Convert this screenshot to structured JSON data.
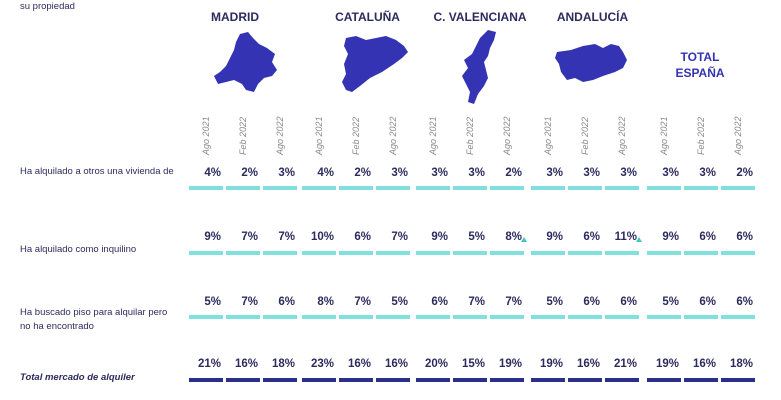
{
  "colors": {
    "map": "#3333b3",
    "bar_light": "#7fe0dd",
    "bar_total": "#2b2f8c",
    "text": "#2c2b5e",
    "arrow": "#3fc7c0"
  },
  "regions": [
    {
      "name": "MADRID",
      "icon": "madrid-map-icon"
    },
    {
      "name": "CATALUÑA",
      "icon": "cataluna-map-icon"
    },
    {
      "name": "C. VALENCIANA",
      "icon": "valencia-map-icon"
    },
    {
      "name": "ANDALUCÍA",
      "icon": "andalucia-map-icon"
    }
  ],
  "total_label": {
    "line1": "TOTAL",
    "line2": "ESPAÑA"
  },
  "chart_data": {
    "type": "table",
    "periods": [
      "Ago 2021",
      "Feb 2022",
      "Ago 2022"
    ],
    "groups": [
      "MADRID",
      "CATALUÑA",
      "C. VALENCIANA",
      "ANDALUCÍA",
      "TOTAL ESPAÑA"
    ],
    "rows": [
      {
        "label_lines": [
          "Ha alquilado a otros una vivienda de",
          "su propiedad"
        ],
        "total": false,
        "values": [
          [
            "4%",
            "2%",
            "3%"
          ],
          [
            "4%",
            "2%",
            "3%"
          ],
          [
            "3%",
            "3%",
            "2%"
          ],
          [
            "3%",
            "3%",
            "3%"
          ],
          [
            "3%",
            "3%",
            "2%"
          ]
        ],
        "increase_markers": []
      },
      {
        "label_lines": [
          "Ha alquilado como inquilino"
        ],
        "total": false,
        "values": [
          [
            "9%",
            "7%",
            "7%"
          ],
          [
            "10%",
            "6%",
            "7%"
          ],
          [
            "9%",
            "5%",
            "8%"
          ],
          [
            "9%",
            "6%",
            "11%"
          ],
          [
            "9%",
            "6%",
            "6%"
          ]
        ],
        "increase_markers": [
          [
            2,
            2
          ],
          [
            3,
            2
          ]
        ]
      },
      {
        "label_lines": [
          "Ha buscado piso para alquilar pero",
          "no ha encontrado"
        ],
        "total": false,
        "values": [
          [
            "5%",
            "7%",
            "6%"
          ],
          [
            "8%",
            "7%",
            "5%"
          ],
          [
            "6%",
            "7%",
            "7%"
          ],
          [
            "5%",
            "6%",
            "6%"
          ],
          [
            "5%",
            "6%",
            "6%"
          ]
        ],
        "increase_markers": []
      },
      {
        "label_lines": [
          "Total mercado de alquiler"
        ],
        "total": true,
        "values": [
          [
            "21%",
            "16%",
            "18%"
          ],
          [
            "23%",
            "16%",
            "16%"
          ],
          [
            "20%",
            "15%",
            "19%"
          ],
          [
            "19%",
            "16%",
            "21%"
          ],
          [
            "19%",
            "16%",
            "18%"
          ]
        ],
        "increase_markers": []
      }
    ]
  }
}
